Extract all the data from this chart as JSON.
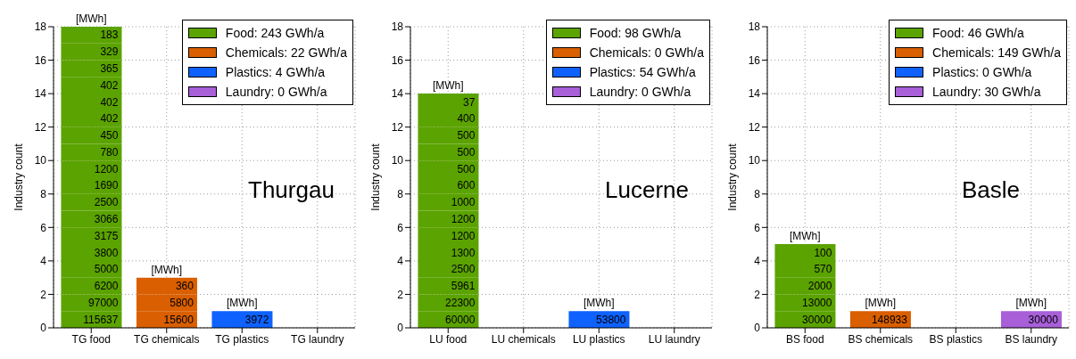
{
  "chart_data": [
    {
      "type": "bar",
      "stacked": true,
      "categories": [
        "TG food",
        "TG chemicals",
        "TG plastics",
        "TG laundry"
      ],
      "ylabel": "Industry count",
      "ylim": [
        0,
        18
      ],
      "yticks": [
        0,
        2,
        4,
        6,
        8,
        10,
        12,
        14,
        16,
        18
      ],
      "grid": true,
      "legend": "top right",
      "annotations": [
        "Thurgau",
        {
          "text": "[MWh]",
          "x": "TG food",
          "y": 18
        },
        {
          "text": "[MWh]",
          "x": "TG chemicals",
          "y": 3
        },
        {
          "text": "[MWh]",
          "x": "TG plastics",
          "y": 1
        }
      ],
      "series": [
        {
          "name": "Food: 243 GWh/a",
          "color": "#5ba300",
          "values": [
            null,
            null,
            null,
            null
          ]
        },
        {
          "name": "Chemicals: 22 GWh/a",
          "color": "#d95f00",
          "values": [
            null,
            null,
            null,
            null
          ]
        },
        {
          "name": "Plastics: 4 GWh/a",
          "color": "#0f62fe",
          "values": [
            null,
            null,
            null,
            null
          ]
        },
        {
          "name": "Laundry: 0 GWh/a",
          "color": "#a85fd8",
          "values": [
            null,
            null,
            null,
            null
          ]
        },
        {
          "name": "115637",
          "color": "#5ba300",
          "values": [
            1,
            null,
            null,
            null
          ]
        },
        {
          "name": "97000",
          "color": "#5ba300",
          "values": [
            1,
            null,
            null,
            null
          ]
        },
        {
          "name": "6200",
          "color": "#5ba300",
          "values": [
            1,
            null,
            null,
            null
          ]
        },
        {
          "name": "5000",
          "color": "#5ba300",
          "values": [
            1,
            null,
            null,
            null
          ]
        },
        {
          "name": "3800",
          "color": "#5ba300",
          "values": [
            1,
            null,
            null,
            null
          ]
        },
        {
          "name": "3175",
          "color": "#5ba300",
          "values": [
            1,
            null,
            null,
            null
          ]
        },
        {
          "name": "3066",
          "color": "#5ba300",
          "values": [
            1,
            null,
            null,
            null
          ]
        },
        {
          "name": "2500",
          "color": "#5ba300",
          "values": [
            1,
            null,
            null,
            null
          ]
        },
        {
          "name": "1690",
          "color": "#5ba300",
          "values": [
            1,
            null,
            null,
            null
          ]
        },
        {
          "name": "1200",
          "color": "#5ba300",
          "values": [
            1,
            null,
            null,
            null
          ]
        },
        {
          "name": "780",
          "color": "#5ba300",
          "values": [
            1,
            null,
            null,
            null
          ]
        },
        {
          "name": "450",
          "color": "#5ba300",
          "values": [
            1,
            null,
            null,
            null
          ]
        },
        {
          "name": "402",
          "color": "#5ba300",
          "values": [
            1,
            null,
            null,
            null
          ]
        },
        {
          "name": "402",
          "color": "#5ba300",
          "values": [
            1,
            null,
            null,
            null
          ]
        },
        {
          "name": "402",
          "color": "#5ba300",
          "values": [
            1,
            null,
            null,
            null
          ]
        },
        {
          "name": "365",
          "color": "#5ba300",
          "values": [
            1,
            null,
            null,
            null
          ]
        },
        {
          "name": "329",
          "color": "#5ba300",
          "values": [
            1,
            null,
            null,
            null
          ]
        },
        {
          "name": "183",
          "color": "#5ba300",
          "values": [
            1,
            null,
            null,
            null
          ]
        },
        {
          "name": "15600",
          "color": "#d95f00",
          "values": [
            null,
            1,
            null,
            null
          ]
        },
        {
          "name": "5800",
          "color": "#d95f00",
          "values": [
            null,
            1,
            null,
            null
          ]
        },
        {
          "name": "360",
          "color": "#d95f00",
          "values": [
            null,
            1,
            null,
            null
          ]
        },
        {
          "name": "3972",
          "color": "#0f62fe",
          "values": [
            null,
            null,
            1,
            null
          ]
        }
      ]
    },
    {
      "type": "bar",
      "stacked": true,
      "categories": [
        "LU food",
        "LU chemicals",
        "LU plastics",
        "LU laundry"
      ],
      "ylabel": "Industry count",
      "ylim": [
        0,
        18
      ],
      "yticks": [
        0,
        2,
        4,
        6,
        8,
        10,
        12,
        14,
        16,
        18
      ],
      "grid": true,
      "legend": "top right",
      "annotations": [
        "Lucerne",
        {
          "text": "[MWh]",
          "x": "LU food",
          "y": 14
        },
        {
          "text": "[MWh]",
          "x": "LU plastics",
          "y": 1
        }
      ],
      "series": [
        {
          "name": "Food: 98 GWh/a",
          "color": "#5ba300",
          "values": [
            null,
            null,
            null,
            null
          ]
        },
        {
          "name": "Chemicals: 0 GWh/a",
          "color": "#d95f00",
          "values": [
            null,
            null,
            null,
            null
          ]
        },
        {
          "name": "Plastics: 54 GWh/a",
          "color": "#0f62fe",
          "values": [
            null,
            null,
            null,
            null
          ]
        },
        {
          "name": "Laundry: 0 GWh/a",
          "color": "#a85fd8",
          "values": [
            null,
            null,
            null,
            null
          ]
        },
        {
          "name": "60000",
          "color": "#5ba300",
          "values": [
            1,
            null,
            null,
            null
          ]
        },
        {
          "name": "22300",
          "color": "#5ba300",
          "values": [
            1,
            null,
            null,
            null
          ]
        },
        {
          "name": "5961",
          "color": "#5ba300",
          "values": [
            1,
            null,
            null,
            null
          ]
        },
        {
          "name": "2500",
          "color": "#5ba300",
          "values": [
            1,
            null,
            null,
            null
          ]
        },
        {
          "name": "1300",
          "color": "#5ba300",
          "values": [
            1,
            null,
            null,
            null
          ]
        },
        {
          "name": "1200",
          "color": "#5ba300",
          "values": [
            1,
            null,
            null,
            null
          ]
        },
        {
          "name": "1200",
          "color": "#5ba300",
          "values": [
            1,
            null,
            null,
            null
          ]
        },
        {
          "name": "1000",
          "color": "#5ba300",
          "values": [
            1,
            null,
            null,
            null
          ]
        },
        {
          "name": "600",
          "color": "#5ba300",
          "values": [
            1,
            null,
            null,
            null
          ]
        },
        {
          "name": "500",
          "color": "#5ba300",
          "values": [
            1,
            null,
            null,
            null
          ]
        },
        {
          "name": "500",
          "color": "#5ba300",
          "values": [
            1,
            null,
            null,
            null
          ]
        },
        {
          "name": "500",
          "color": "#5ba300",
          "values": [
            1,
            null,
            null,
            null
          ]
        },
        {
          "name": "400",
          "color": "#5ba300",
          "values": [
            1,
            null,
            null,
            null
          ]
        },
        {
          "name": "37",
          "color": "#5ba300",
          "values": [
            1,
            null,
            null,
            null
          ]
        },
        {
          "name": "53800",
          "color": "#0f62fe",
          "values": [
            null,
            null,
            1,
            null
          ]
        }
      ]
    },
    {
      "type": "bar",
      "stacked": true,
      "categories": [
        "BS food",
        "BS chemicals",
        "BS plastics",
        "BS laundry"
      ],
      "ylabel": "Industry count",
      "ylim": [
        0,
        18
      ],
      "yticks": [
        0,
        2,
        4,
        6,
        8,
        10,
        12,
        14,
        16,
        18
      ],
      "grid": true,
      "legend": "top right",
      "annotations": [
        "Basle",
        {
          "text": "[MWh]",
          "x": "BS food",
          "y": 5
        },
        {
          "text": "[MWh]",
          "x": "BS chemicals",
          "y": 1
        },
        {
          "text": "[MWh]",
          "x": "BS laundry",
          "y": 1
        }
      ],
      "series": [
        {
          "name": "Food: 46 GWh/a",
          "color": "#5ba300",
          "values": [
            null,
            null,
            null,
            null
          ]
        },
        {
          "name": "Chemicals: 149 GWh/a",
          "color": "#d95f00",
          "values": [
            null,
            null,
            null,
            null
          ]
        },
        {
          "name": "Plastics: 0 GWh/a",
          "color": "#0f62fe",
          "values": [
            null,
            null,
            null,
            null
          ]
        },
        {
          "name": "Laundry: 30 GWh/a",
          "color": "#a85fd8",
          "values": [
            null,
            null,
            null,
            null
          ]
        },
        {
          "name": "30000",
          "color": "#5ba300",
          "values": [
            1,
            null,
            null,
            null
          ]
        },
        {
          "name": "13000",
          "color": "#5ba300",
          "values": [
            1,
            null,
            null,
            null
          ]
        },
        {
          "name": "2000",
          "color": "#5ba300",
          "values": [
            1,
            null,
            null,
            null
          ]
        },
        {
          "name": "570",
          "color": "#5ba300",
          "values": [
            1,
            null,
            null,
            null
          ]
        },
        {
          "name": "100",
          "color": "#5ba300",
          "values": [
            1,
            null,
            null,
            null
          ]
        },
        {
          "name": "148933",
          "color": "#d95f00",
          "values": [
            null,
            1,
            null,
            null
          ]
        },
        {
          "name": "30000",
          "color": "#a85fd8",
          "values": [
            null,
            null,
            null,
            1
          ]
        }
      ]
    }
  ]
}
